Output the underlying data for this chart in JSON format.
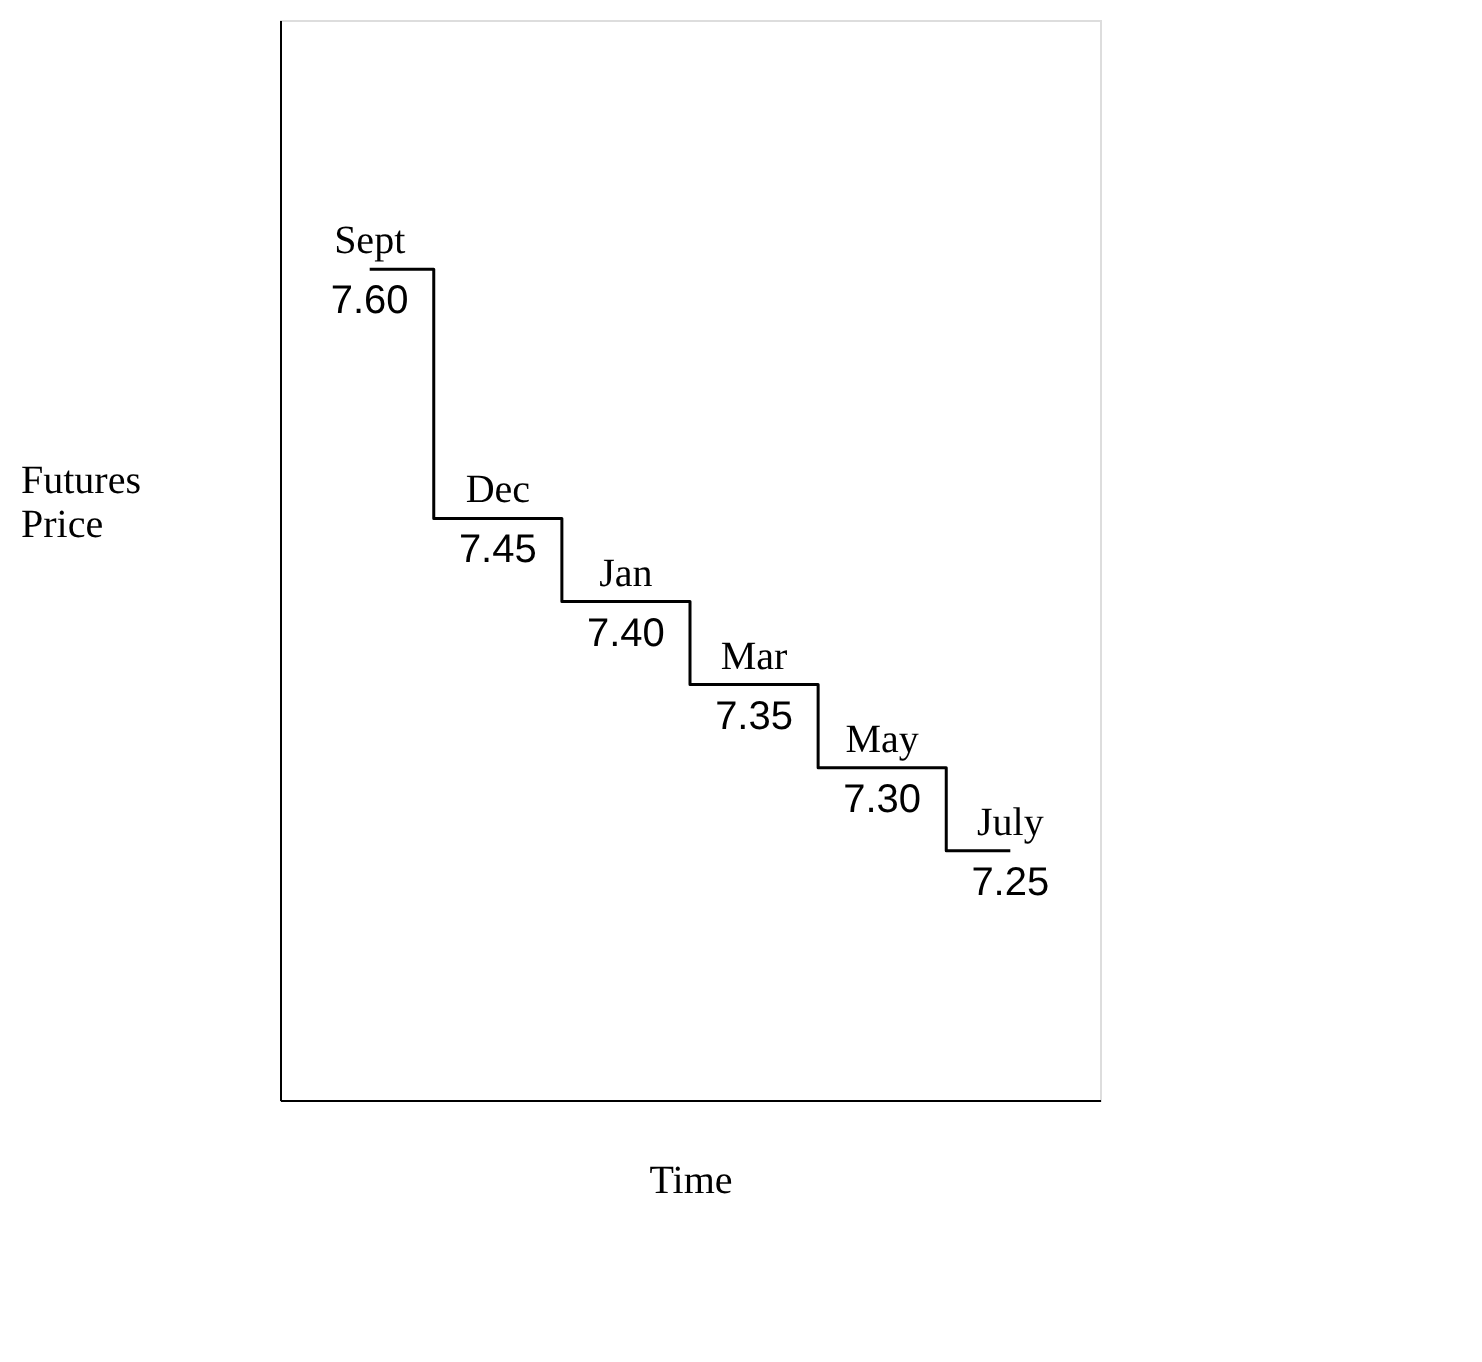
{
  "chart_data": {
    "type": "step",
    "categories": [
      "Sept",
      "Dec",
      "Jan",
      "Mar",
      "May",
      "July"
    ],
    "values": [
      7.6,
      7.45,
      7.4,
      7.35,
      7.3,
      7.25
    ],
    "value_labels": [
      "7.60",
      "7.45",
      "7.40",
      "7.35",
      "7.30",
      "7.25"
    ],
    "xlabel": "Time",
    "ylabel": "Futures Price",
    "ylim": [
      7.1,
      7.75
    ],
    "color": "#000000",
    "grid": false,
    "tick_labels": false
  }
}
